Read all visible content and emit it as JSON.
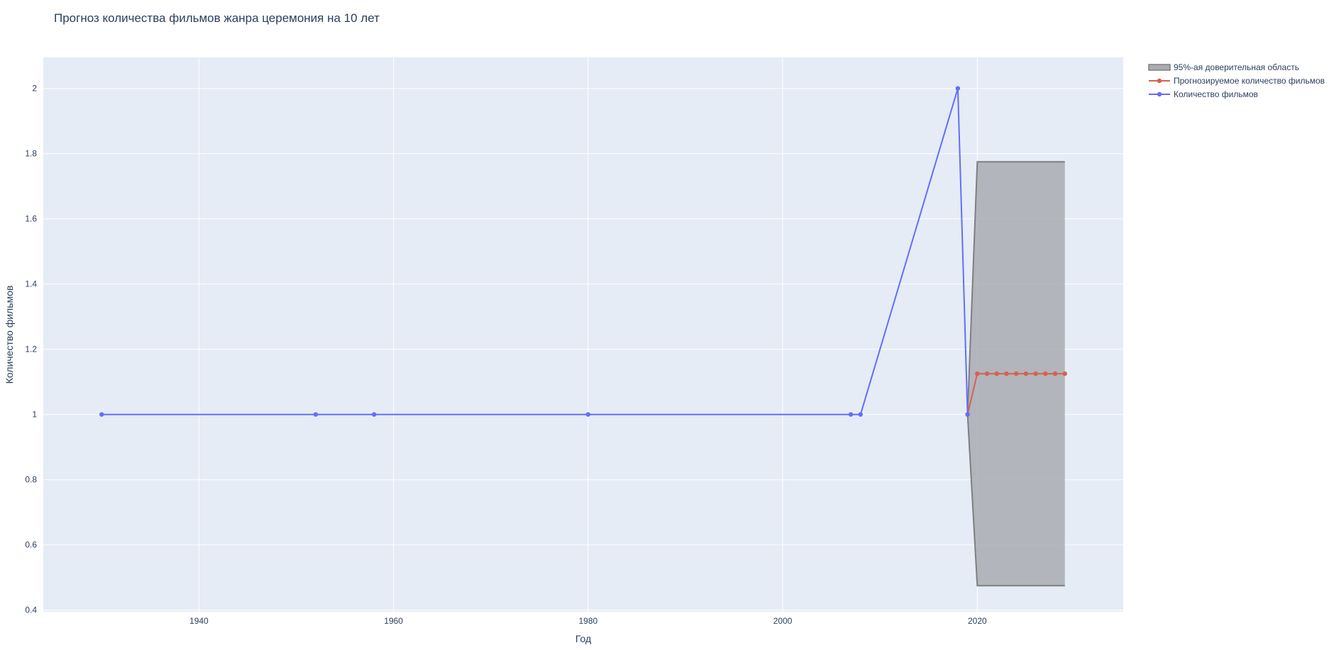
{
  "chart_data": {
    "type": "line",
    "title": "Прогноз количества фильмов жанра церемония на 10 лет",
    "xlabel": "Год",
    "ylabel": "Количество фильмов",
    "xlim": [
      1924,
      2035
    ],
    "ylim": [
      0.395,
      2.095
    ],
    "x_ticks": [
      1940,
      1960,
      1980,
      2000,
      2020
    ],
    "y_ticks": [
      0.4,
      0.6,
      0.8,
      1,
      1.2,
      1.4,
      1.6,
      1.8,
      2
    ],
    "y_tick_labels": [
      "0.4",
      "0.6",
      "0.8",
      "1",
      "1.2",
      "1.4",
      "1.6",
      "1.8",
      "2"
    ],
    "grid": true,
    "legend_position": "top-right, outside plot",
    "series": [
      {
        "name": "Количество фильмов",
        "kind": "line+markers",
        "color": "#636efa",
        "x": [
          1930,
          1952,
          1958,
          1980,
          2007,
          2008,
          2018,
          2019
        ],
        "y": [
          1,
          1,
          1,
          1,
          1,
          1,
          2,
          1
        ]
      },
      {
        "name": "Прогнозируемое количество фильмов",
        "kind": "line+markers",
        "color": "#d6614e",
        "x": [
          2019,
          2020,
          2021,
          2022,
          2023,
          2024,
          2025,
          2026,
          2027,
          2028,
          2029
        ],
        "y": [
          1,
          1.125,
          1.125,
          1.125,
          1.125,
          1.125,
          1.125,
          1.125,
          1.125,
          1.125,
          1.125
        ]
      },
      {
        "name": "95%-ая доверительная область",
        "kind": "band",
        "fill_color": "#a9acb0",
        "line_color": "#7f7f7f",
        "x": [
          2019,
          2020,
          2029
        ],
        "upper": [
          1,
          1.775,
          1.775
        ],
        "lower": [
          1,
          0.475,
          0.475
        ]
      }
    ],
    "legend_order": [
      "95%-ая доверительная область",
      "Прогнозируемое количество фильмов",
      "Количество фильмов"
    ]
  }
}
